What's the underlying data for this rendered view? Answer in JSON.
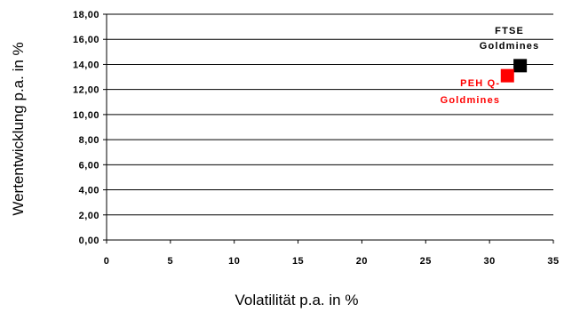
{
  "chart_data": {
    "type": "scatter",
    "xlabel": "Volatilität p.a. in %",
    "ylabel": "Wertentwicklung p.a. in %",
    "xlim": [
      0,
      35
    ],
    "ylim": [
      0,
      18
    ],
    "x_ticks": [
      "0",
      "5",
      "10",
      "15",
      "20",
      "25",
      "30",
      "35"
    ],
    "y_ticks": [
      "0,00",
      "2,00",
      "4,00",
      "6,00",
      "8,00",
      "10,00",
      "12,00",
      "14,00",
      "16,00",
      "18,00"
    ],
    "grid": "horizontal",
    "series": [
      {
        "label_lines": [
          "FTSE",
          "Goldmines"
        ],
        "color": "#000000",
        "x": 32.4,
        "y": 13.9,
        "label_position": "above"
      },
      {
        "label_lines": [
          "PEH Q-",
          "Goldmines"
        ],
        "color": "#ff0000",
        "x": 31.4,
        "y": 13.1,
        "label_position": "below-left"
      }
    ]
  }
}
